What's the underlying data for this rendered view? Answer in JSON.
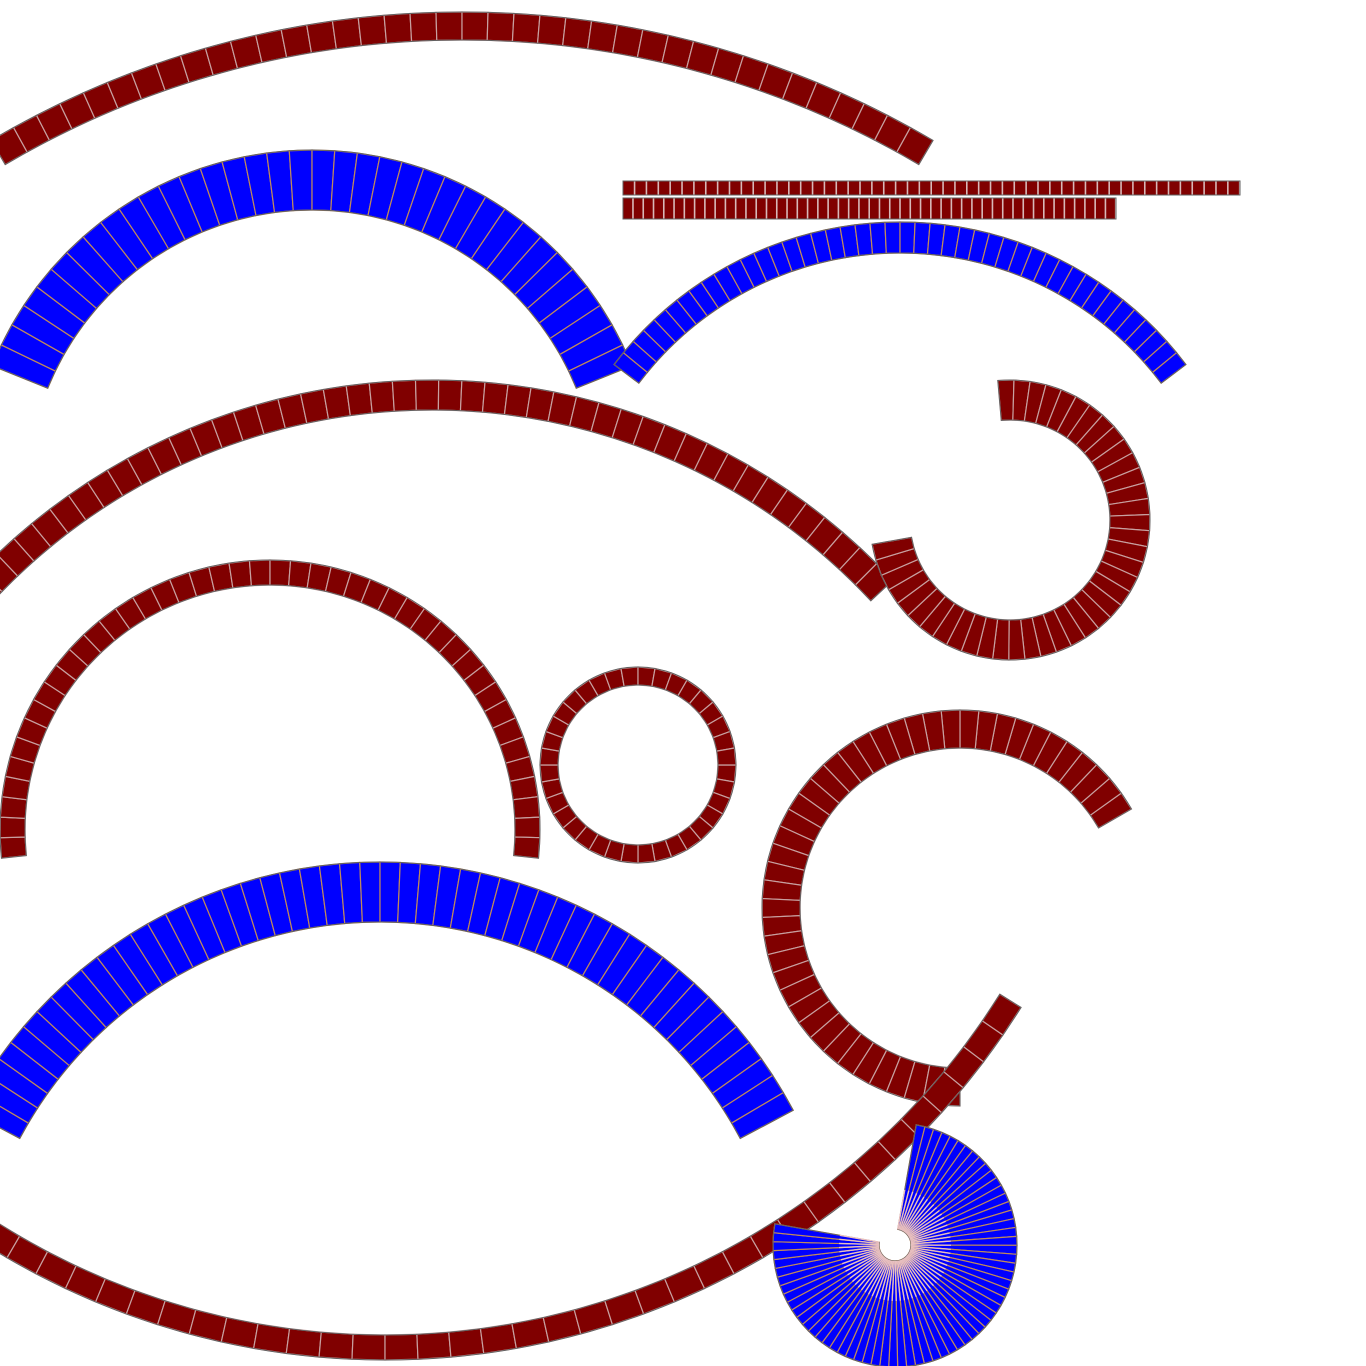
{
  "atlas": {
    "palette": {
      "red_fill": "#800000",
      "blue_fill": "#0000ff",
      "red_seam": "#c8a0a0",
      "blue_seam": "#c08a5a",
      "outline": "#606060"
    },
    "bands": [
      {
        "name": "arc-band-top",
        "color": "red",
        "segments": 38
      },
      {
        "name": "arc-band-blue-upper-left",
        "color": "blue",
        "segments": 36
      },
      {
        "name": "strip-band-top",
        "color": "red",
        "segments": 52
      },
      {
        "name": "strip-band-second",
        "color": "red",
        "segments": 48
      },
      {
        "name": "arc-band-blue-upper-right",
        "color": "blue",
        "segments": 44
      },
      {
        "name": "arc-band-middle",
        "color": "red",
        "segments": 46
      },
      {
        "name": "ring-band-open-right",
        "color": "red",
        "segments": 40
      },
      {
        "name": "arc-band-left-tall",
        "color": "red",
        "segments": 44
      },
      {
        "name": "ring-band-small-closed",
        "color": "red",
        "segments": 36
      },
      {
        "name": "ring-band-large-open",
        "color": "red",
        "segments": 44
      },
      {
        "name": "arc-band-blue-lower",
        "color": "blue",
        "segments": 50
      },
      {
        "name": "arc-band-bottom-smile",
        "color": "red",
        "segments": 46
      },
      {
        "name": "fan-band-blue-bottom",
        "color": "blue",
        "segments": 64
      }
    ]
  }
}
